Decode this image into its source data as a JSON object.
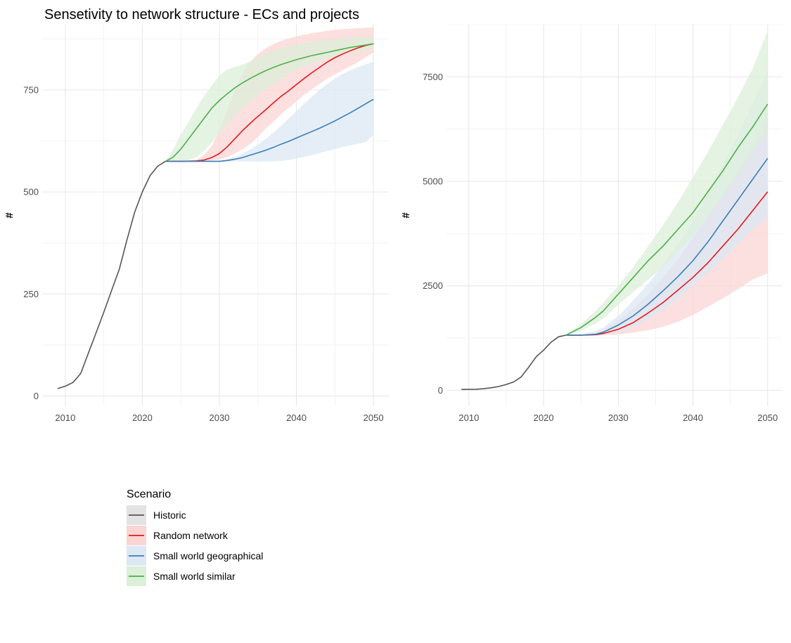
{
  "title": "Sensetivity to network structure - ECs and projects",
  "legend": {
    "title": "Scenario",
    "items": [
      {
        "label": "Historic",
        "color": "#555555",
        "fill": "#e3e3e3"
      },
      {
        "label": "Random network",
        "color": "#e41a1c",
        "fill": "#fbd4d4"
      },
      {
        "label": "Small world geographical",
        "color": "#377eb8",
        "fill": "#dce8f4"
      },
      {
        "label": "Small world similar",
        "color": "#4daf4a",
        "fill": "#dcefd9"
      }
    ]
  },
  "chart_data": [
    {
      "type": "line",
      "title": "Sensetivity to network structure - ECs and projects",
      "ylabel": "#",
      "xlim": [
        2007,
        2052
      ],
      "ylim": [
        -25,
        910
      ],
      "x_ticks": [
        2010,
        2020,
        2030,
        2040,
        2050
      ],
      "y_ticks": [
        0,
        250,
        500,
        750
      ],
      "series": [
        {
          "name": "Historic",
          "color": "#555555",
          "fill": "#e3e3e3",
          "x": [
            2009,
            2010,
            2011,
            2012,
            2013,
            2014,
            2015,
            2016,
            2017,
            2018,
            2019,
            2020,
            2021,
            2022,
            2023
          ],
          "y": [
            18,
            24,
            33,
            55,
            105,
            155,
            205,
            258,
            310,
            382,
            450,
            500,
            540,
            563,
            575
          ]
        },
        {
          "name": "Random network",
          "color": "#e41a1c",
          "fill": "#fbd4d4",
          "x": [
            2023,
            2025,
            2027,
            2028,
            2029,
            2030,
            2031,
            2032,
            2033,
            2034,
            2035,
            2036,
            2037,
            2038,
            2039,
            2040,
            2041,
            2042,
            2043,
            2044,
            2045,
            2046,
            2047,
            2048,
            2049,
            2050
          ],
          "y": [
            575,
            575,
            576,
            578,
            584,
            594,
            610,
            630,
            650,
            668,
            685,
            701,
            718,
            734,
            748,
            763,
            778,
            792,
            805,
            818,
            829,
            838,
            846,
            853,
            859,
            863
          ],
          "lower": [
            575,
            575,
            575,
            575,
            577,
            580,
            585,
            594,
            605,
            618,
            635,
            655,
            672,
            690,
            706,
            722,
            738,
            752,
            765,
            778,
            788,
            798,
            808,
            818,
            830,
            842
          ],
          "upper": [
            575,
            575,
            579,
            590,
            612,
            650,
            700,
            750,
            790,
            818,
            838,
            852,
            862,
            870,
            876,
            881,
            885,
            889,
            892,
            895,
            897,
            899,
            900,
            901,
            902,
            903
          ]
        },
        {
          "name": "Small world geographical",
          "color": "#377eb8",
          "fill": "#dce8f4",
          "x": [
            2023,
            2025,
            2030,
            2031,
            2032,
            2033,
            2034,
            2035,
            2036,
            2037,
            2038,
            2039,
            2040,
            2041,
            2042,
            2043,
            2044,
            2045,
            2046,
            2047,
            2048,
            2049,
            2050
          ],
          "y": [
            575,
            575,
            575,
            577,
            580,
            584,
            590,
            596,
            602,
            609,
            617,
            624,
            632,
            640,
            648,
            656,
            665,
            674,
            684,
            694,
            705,
            716,
            727
          ],
          "lower": [
            575,
            575,
            575,
            575,
            575,
            575,
            575,
            575,
            575,
            575,
            576,
            578,
            582,
            586,
            590,
            595,
            600,
            605,
            610,
            614,
            618,
            622,
            640
          ],
          "upper": [
            575,
            575,
            576,
            580,
            586,
            594,
            604,
            616,
            630,
            645,
            662,
            680,
            698,
            716,
            733,
            750,
            765,
            778,
            789,
            798,
            806,
            812,
            820
          ]
        },
        {
          "name": "Small world similar",
          "color": "#4daf4a",
          "fill": "#dcefd9",
          "x": [
            2023,
            2024,
            2025,
            2026,
            2027,
            2028,
            2029,
            2030,
            2031,
            2032,
            2033,
            2034,
            2035,
            2036,
            2037,
            2038,
            2039,
            2040,
            2041,
            2042,
            2043,
            2044,
            2045,
            2046,
            2047,
            2048,
            2049,
            2050
          ],
          "y": [
            575,
            585,
            605,
            630,
            655,
            680,
            705,
            724,
            740,
            755,
            767,
            778,
            788,
            797,
            805,
            812,
            818,
            824,
            829,
            834,
            838,
            842,
            846,
            850,
            854,
            857,
            860,
            863
          ],
          "lower": [
            575,
            575,
            576,
            578,
            585,
            600,
            620,
            645,
            665,
            685,
            705,
            722,
            738,
            752,
            764,
            776,
            788,
            798,
            806,
            813,
            820,
            826,
            832,
            836,
            840,
            844,
            847,
            850
          ],
          "upper": [
            575,
            605,
            640,
            672,
            705,
            735,
            760,
            785,
            800,
            806,
            812,
            820,
            830,
            838,
            846,
            852,
            857,
            861,
            865,
            868,
            871,
            873,
            875,
            877,
            878,
            879,
            880,
            881
          ]
        }
      ]
    },
    {
      "type": "line",
      "title": "",
      "ylabel": "#",
      "xlim": [
        2007,
        2052
      ],
      "ylim": [
        -380,
        8750
      ],
      "x_ticks": [
        2010,
        2020,
        2030,
        2040,
        2050
      ],
      "y_ticks": [
        0,
        2500,
        5000,
        7500
      ],
      "series": [
        {
          "name": "Historic",
          "color": "#555555",
          "fill": "#e3e3e3",
          "x": [
            2009,
            2010,
            2011,
            2012,
            2013,
            2014,
            2015,
            2016,
            2017,
            2018,
            2019,
            2020,
            2021,
            2022,
            2023
          ],
          "y": [
            20,
            22,
            26,
            38,
            60,
            90,
            140,
            200,
            320,
            550,
            800,
            960,
            1150,
            1280,
            1320
          ]
        },
        {
          "name": "Random network",
          "color": "#e41a1c",
          "fill": "#fbd4d4",
          "x": [
            2023,
            2025,
            2027,
            2028,
            2030,
            2032,
            2034,
            2036,
            2038,
            2040,
            2042,
            2044,
            2046,
            2048,
            2050
          ],
          "y": [
            1320,
            1320,
            1330,
            1360,
            1460,
            1620,
            1850,
            2100,
            2400,
            2700,
            3050,
            3450,
            3850,
            4300,
            4750
          ],
          "lower": [
            1320,
            1320,
            1320,
            1320,
            1340,
            1380,
            1440,
            1520,
            1640,
            1800,
            2000,
            2200,
            2420,
            2650,
            2800
          ],
          "upper": [
            1320,
            1320,
            1380,
            1450,
            1660,
            1950,
            2300,
            2700,
            3150,
            3650,
            4150,
            4700,
            5250,
            5850,
            6650
          ]
        },
        {
          "name": "Small world geographical",
          "color": "#377eb8",
          "fill": "#dce8f4",
          "x": [
            2023,
            2025,
            2027,
            2028,
            2030,
            2032,
            2034,
            2036,
            2038,
            2040,
            2042,
            2044,
            2046,
            2048,
            2050
          ],
          "y": [
            1320,
            1320,
            1340,
            1390,
            1560,
            1780,
            2060,
            2380,
            2720,
            3100,
            3550,
            4050,
            4550,
            5050,
            5550
          ],
          "lower": [
            1320,
            1320,
            1320,
            1330,
            1400,
            1520,
            1700,
            1920,
            2200,
            2500,
            2820,
            3150,
            3500,
            3850,
            4150
          ],
          "upper": [
            1320,
            1330,
            1420,
            1500,
            1780,
            2150,
            2550,
            3000,
            3500,
            4050,
            4700,
            5400,
            6100,
            6850,
            7650
          ]
        },
        {
          "name": "Small world similar",
          "color": "#4daf4a",
          "fill": "#dcefd9",
          "x": [
            2023,
            2025,
            2027,
            2028,
            2030,
            2032,
            2034,
            2036,
            2038,
            2040,
            2042,
            2044,
            2046,
            2048,
            2050
          ],
          "y": [
            1320,
            1500,
            1750,
            1900,
            2300,
            2700,
            3100,
            3450,
            3850,
            4250,
            4750,
            5250,
            5800,
            6300,
            6850
          ],
          "lower": [
            1320,
            1420,
            1600,
            1720,
            2050,
            2350,
            2650,
            2950,
            3300,
            3700,
            4150,
            4650,
            5150,
            5700,
            6200
          ],
          "upper": [
            1320,
            1580,
            1900,
            2100,
            2500,
            2950,
            3450,
            3950,
            4500,
            5100,
            5700,
            6350,
            7000,
            7700,
            8600
          ]
        }
      ]
    }
  ]
}
